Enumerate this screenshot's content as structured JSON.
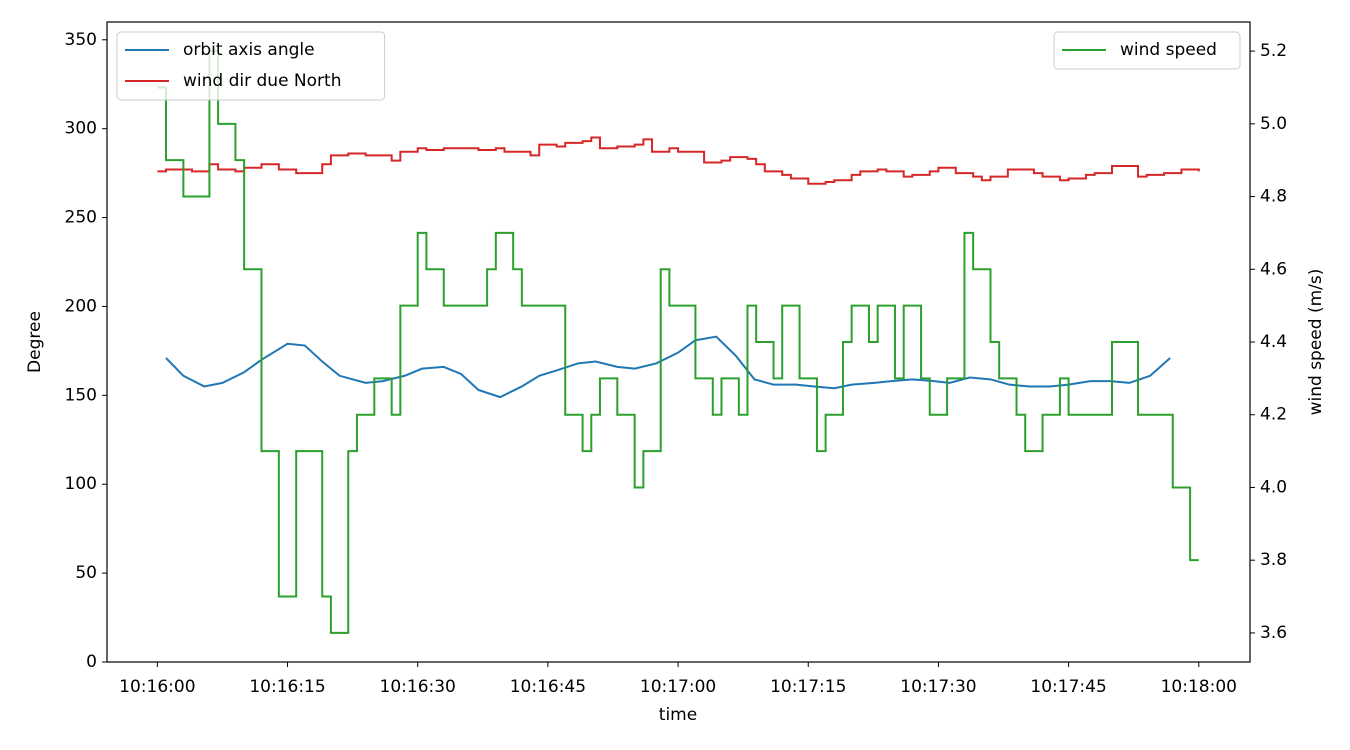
{
  "chart_data": {
    "type": "line",
    "xlabel": "time",
    "ylabel": "Degree",
    "y2label": "wind speed (m/s)",
    "xlim": [
      -5.8,
      125.9
    ],
    "xticks": [
      {
        "value": 0,
        "label": "10:16:00"
      },
      {
        "value": 15,
        "label": "10:16:15"
      },
      {
        "value": 30,
        "label": "10:16:30"
      },
      {
        "value": 45,
        "label": "10:16:45"
      },
      {
        "value": 60,
        "label": "10:17:00"
      },
      {
        "value": 75,
        "label": "10:17:15"
      },
      {
        "value": 90,
        "label": "10:17:30"
      },
      {
        "value": 105,
        "label": "10:17:45"
      },
      {
        "value": 120,
        "label": "10:18:00"
      }
    ],
    "ylim": [
      0,
      360
    ],
    "yticks": [
      0,
      50,
      100,
      150,
      200,
      250,
      300,
      350
    ],
    "y2lim": [
      3.52,
      5.28
    ],
    "y2ticks": [
      3.6,
      3.8,
      {
        "value": 4.0,
        "label": "4.0"
      },
      4.2,
      4.4,
      4.6,
      4.8,
      {
        "value": 5.0,
        "label": "5.0"
      },
      5.2
    ],
    "legend": "upper left",
    "legend2": "upper right",
    "series": [
      {
        "name": "orbit axis angle",
        "color": "#1f77b4",
        "x": [
          1,
          3,
          5.4,
          7.5,
          10,
          12,
          15,
          17,
          19,
          21,
          24,
          26,
          28.5,
          30.5,
          33,
          35,
          37,
          39.5,
          42,
          44,
          46,
          48.5,
          50.5,
          53,
          55,
          57.5,
          60,
          62,
          64.4,
          66.7,
          68.8,
          71,
          73.6,
          75.7,
          78,
          80,
          82.6,
          84.6,
          87,
          89.5,
          91.3,
          93.6,
          96,
          98.2,
          100.5,
          102.8,
          105,
          107.5,
          109.8,
          112,
          114.4,
          116.7
        ],
        "values": [
          171,
          161,
          155,
          157,
          163,
          170,
          179,
          178,
          169,
          161,
          157,
          158,
          161,
          165,
          166,
          162,
          153,
          149,
          155,
          161,
          164,
          168,
          169,
          166,
          165,
          168,
          174,
          181,
          183,
          172,
          159,
          156,
          156,
          155,
          154,
          156,
          157,
          158,
          159,
          158,
          157,
          160,
          159,
          156,
          155,
          155,
          156,
          158,
          158,
          157,
          161,
          171
        ]
      },
      {
        "name": "wind dir due North",
        "color": "#d62728",
        "step": "post",
        "x": [
          0,
          1,
          3,
          4,
          6,
          7,
          9,
          10,
          12,
          14,
          16,
          19,
          20,
          22,
          24,
          27,
          28,
          30,
          31,
          33,
          35,
          37,
          39,
          40,
          42,
          43,
          44,
          46,
          47,
          49,
          50,
          51,
          53,
          55,
          56,
          57,
          59,
          60,
          62,
          63,
          65,
          66,
          68,
          69,
          70,
          72,
          73,
          75,
          76,
          77,
          78,
          80,
          81,
          83,
          84,
          86,
          87,
          89,
          90,
          92,
          94,
          95,
          96,
          98,
          101,
          102,
          104,
          105,
          107,
          108,
          110,
          113,
          114,
          116,
          118,
          120
        ],
        "values": [
          276,
          277,
          277,
          276,
          280,
          277,
          276,
          278,
          280,
          277,
          275,
          280,
          285,
          286,
          285,
          282,
          287,
          289,
          288,
          289,
          289,
          288,
          289,
          287,
          287,
          285,
          291,
          290,
          292,
          293,
          295,
          289,
          290,
          291,
          294,
          287,
          289,
          287,
          287,
          281,
          282,
          284,
          283,
          280,
          276,
          274,
          272,
          269,
          269,
          270,
          271,
          274,
          276,
          277,
          276,
          273,
          274,
          276,
          278,
          275,
          273,
          271,
          273,
          277,
          275,
          273,
          271,
          272,
          274,
          275,
          279,
          273,
          274,
          275,
          277,
          276
        ]
      },
      {
        "name": "wind speed",
        "color": "#2ca02c",
        "step": "post",
        "axis": "y2",
        "x": [
          0,
          1,
          3,
          6,
          7,
          9,
          10,
          12,
          14,
          16,
          19,
          20,
          22,
          23,
          25,
          27,
          28,
          30,
          31,
          33,
          38,
          39,
          41,
          42,
          47,
          49,
          50,
          51,
          53,
          55,
          56,
          58,
          59,
          62,
          64,
          65,
          67,
          68,
          69,
          71,
          72,
          74,
          76,
          77,
          79,
          80,
          82,
          83,
          85,
          86,
          88,
          89,
          91,
          93,
          94,
          96,
          97,
          99,
          100,
          102,
          104,
          105,
          110,
          113,
          117,
          119,
          120
        ],
        "values": [
          5.1,
          4.9,
          4.8,
          5.2,
          5.0,
          4.9,
          4.6,
          4.1,
          3.7,
          4.1,
          3.7,
          3.6,
          4.1,
          4.2,
          4.3,
          4.2,
          4.5,
          4.7,
          4.6,
          4.5,
          4.6,
          4.7,
          4.6,
          4.5,
          4.2,
          4.1,
          4.2,
          4.3,
          4.2,
          4.0,
          4.1,
          4.6,
          4.5,
          4.3,
          4.2,
          4.3,
          4.2,
          4.5,
          4.4,
          4.3,
          4.5,
          4.3,
          4.1,
          4.2,
          4.4,
          4.5,
          4.4,
          4.5,
          4.3,
          4.5,
          4.3,
          4.2,
          4.3,
          4.7,
          4.6,
          4.4,
          4.3,
          4.2,
          4.1,
          4.2,
          4.3,
          4.2,
          4.4,
          4.2,
          4.0,
          3.8,
          3.8
        ]
      }
    ]
  }
}
